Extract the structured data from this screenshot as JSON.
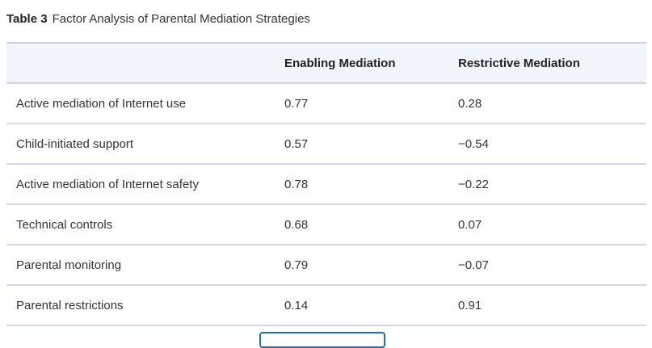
{
  "caption": {
    "label": "Table 3",
    "title": "Factor Analysis of Parental Mediation Strategies"
  },
  "headers": [
    "",
    "Enabling Mediation",
    "Restrictive Mediation"
  ],
  "rows": [
    [
      "Active mediation of Internet use",
      "0.77",
      "0.28"
    ],
    [
      "Child-initiated support",
      "0.57",
      "−0.54"
    ],
    [
      "Active mediation of Internet safety",
      "0.78",
      "−0.22"
    ],
    [
      "Technical controls",
      "0.68",
      "0.07"
    ],
    [
      "Parental monitoring",
      "0.79",
      "−0.07"
    ],
    [
      "Parental restrictions",
      "0.14",
      "0.91"
    ]
  ]
}
